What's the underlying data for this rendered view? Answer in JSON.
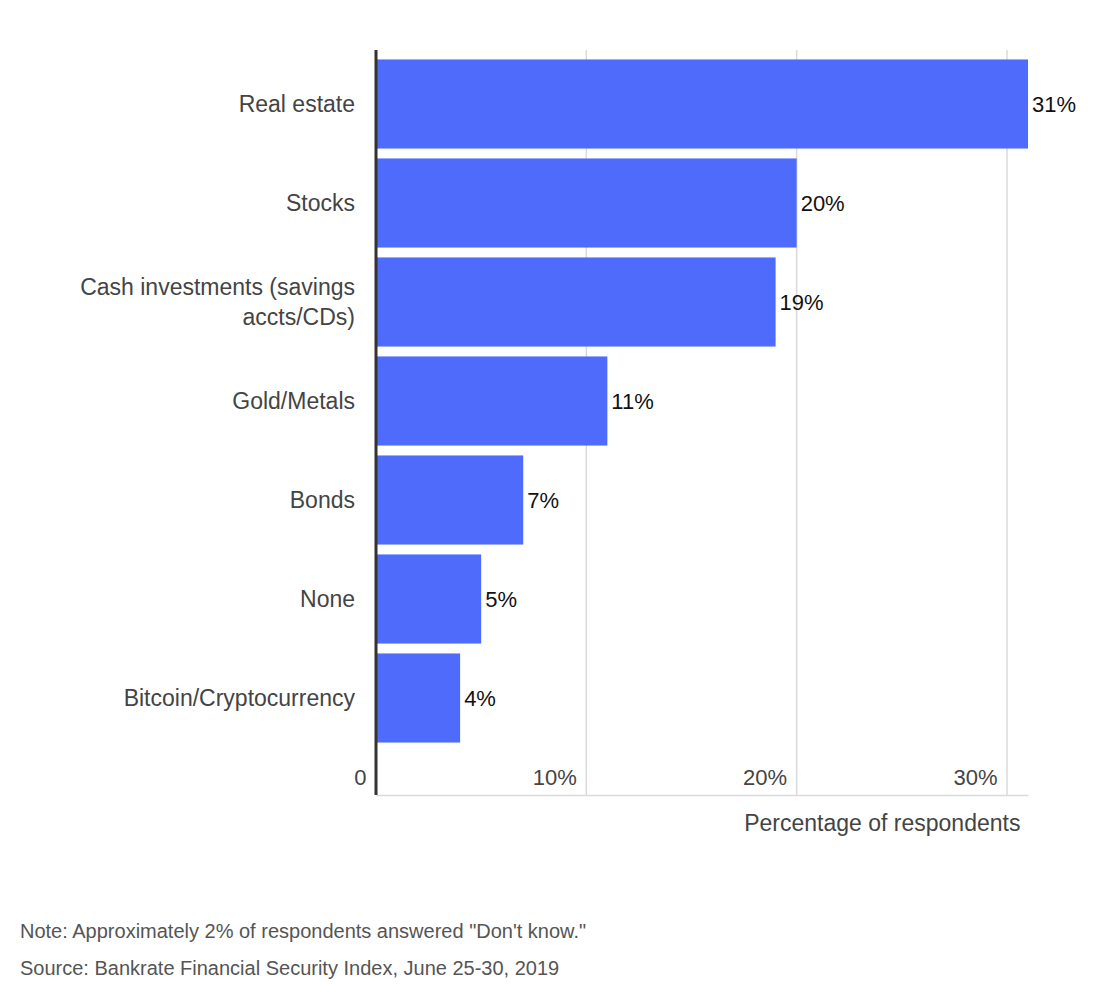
{
  "chart_data": {
    "type": "bar",
    "orientation": "horizontal",
    "categories": [
      "Real estate",
      "Stocks",
      "Cash investments (savings accts/CDs)",
      "Gold/Metals",
      "Bonds",
      "None",
      "Bitcoin/Cryptocurrency"
    ],
    "values": [
      31,
      20,
      19,
      11,
      7,
      5,
      4
    ],
    "value_labels": [
      "31%",
      "20%",
      "19%",
      "11%",
      "7%",
      "5%",
      "4%"
    ],
    "color": "#4f6bfb",
    "xlim": [
      0,
      31
    ],
    "xticks": [
      0,
      {
        "value": 10,
        "label": "10%"
      },
      {
        "value": 20,
        "label": "20%"
      },
      {
        "value": 30,
        "label": "30%"
      }
    ],
    "x_label": "Percentage of respondents",
    "grid": true,
    "data_labels": true,
    "note": "Note: Approximately 2% of respondents answered \"Don't know.\"",
    "source": "Source: Bankrate Financial Security Index, June 25-30, 2019"
  }
}
